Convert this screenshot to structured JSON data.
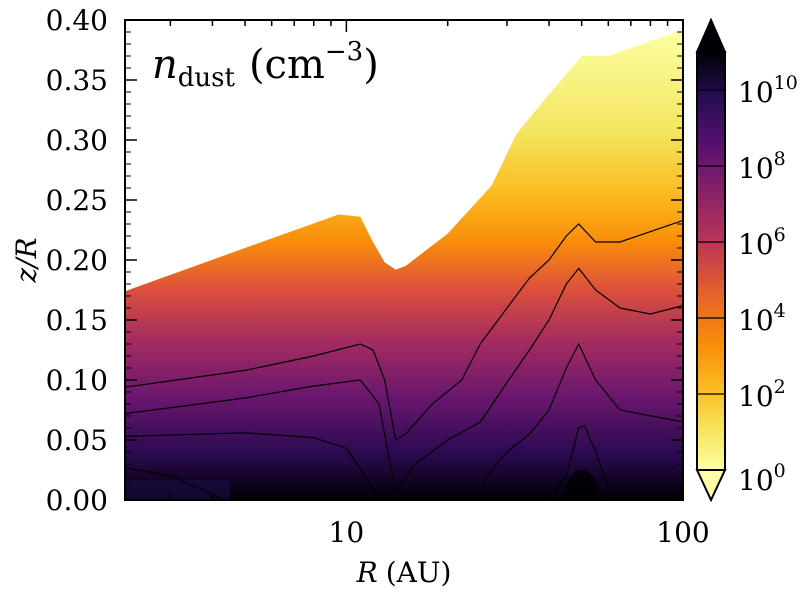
{
  "chart_data": {
    "type": "heatmap",
    "title": "n_dust (cm^-3)",
    "title_parts": {
      "symbol": "n",
      "subscript": "dust",
      "unit_open": "(cm",
      "unit_power": "−3",
      "unit_close": ")"
    },
    "xlabel": "R (AU)",
    "xlabel_parts": {
      "symbol": "R",
      "unit": "(AU)"
    },
    "ylabel": "z/R",
    "x_scale": "log",
    "xlim": [
      2.2,
      100
    ],
    "ylim": [
      0.0,
      0.4
    ],
    "x_ticks": [
      {
        "value": 10,
        "label": "10"
      },
      {
        "value": 100,
        "label": "100"
      }
    ],
    "y_ticks": [
      {
        "value": 0.0,
        "label": "0.00"
      },
      {
        "value": 0.05,
        "label": "0.05"
      },
      {
        "value": 0.1,
        "label": "0.10"
      },
      {
        "value": 0.15,
        "label": "0.15"
      },
      {
        "value": 0.2,
        "label": "0.20"
      },
      {
        "value": 0.25,
        "label": "0.25"
      },
      {
        "value": 0.3,
        "label": "0.30"
      },
      {
        "value": 0.35,
        "label": "0.35"
      },
      {
        "value": 0.4,
        "label": "0.40"
      }
    ],
    "colorbar": {
      "scale": "log",
      "range_exponent": [
        0,
        11
      ],
      "colormap": "inferno_r",
      "extend": "both",
      "tick_exponents": [
        0,
        2,
        4,
        6,
        8,
        10
      ],
      "tick_base": "10",
      "label_position": "right"
    },
    "upper_boundary": [
      [
        2.2,
        0.174
      ],
      [
        5,
        0.21
      ],
      [
        9.5,
        0.238
      ],
      [
        11,
        0.236
      ],
      [
        12,
        0.215
      ],
      [
        13,
        0.198
      ],
      [
        14,
        0.192
      ],
      [
        15,
        0.195
      ],
      [
        20,
        0.222
      ],
      [
        27,
        0.262
      ],
      [
        32,
        0.305
      ],
      [
        40,
        0.338
      ],
      [
        50,
        0.37
      ],
      [
        60,
        0.37
      ],
      [
        100,
        0.392
      ]
    ],
    "contours": [
      {
        "level_exponent": 8,
        "points": [
          [
            2.2,
            0.027
          ],
          [
            3,
            0.02
          ],
          [
            4,
            0.005
          ],
          [
            4.3,
            0.0
          ]
        ]
      },
      {
        "level_exponent": 8,
        "points": [
          [
            40,
            0.0
          ],
          [
            45,
            0.02
          ],
          [
            49,
            0.06
          ],
          [
            51,
            0.062
          ],
          [
            55,
            0.04
          ],
          [
            62,
            0.0
          ]
        ]
      },
      {
        "level_exponent": 6,
        "points": [
          [
            2.2,
            0.053
          ],
          [
            5,
            0.056
          ],
          [
            8,
            0.052
          ],
          [
            10,
            0.043
          ],
          [
            12,
            0.01
          ],
          [
            12.6,
            0.0
          ]
        ]
      },
      {
        "level_exponent": 6,
        "points": [
          [
            25,
            0.0
          ],
          [
            26,
            0.02
          ],
          [
            30,
            0.04
          ],
          [
            35,
            0.055
          ],
          [
            40,
            0.075
          ],
          [
            45,
            0.11
          ],
          [
            49,
            0.13
          ],
          [
            55,
            0.1
          ],
          [
            65,
            0.075
          ],
          [
            100,
            0.065
          ]
        ]
      },
      {
        "level_exponent": 4,
        "points": [
          [
            2.2,
            0.072
          ],
          [
            5,
            0.085
          ],
          [
            8,
            0.095
          ],
          [
            11,
            0.1
          ],
          [
            12.5,
            0.08
          ],
          [
            13.5,
            0.03
          ],
          [
            14,
            0.006
          ],
          [
            16,
            0.03
          ],
          [
            20,
            0.05
          ],
          [
            25,
            0.065
          ],
          [
            30,
            0.098
          ],
          [
            35,
            0.125
          ],
          [
            40,
            0.15
          ],
          [
            45,
            0.18
          ],
          [
            49,
            0.193
          ],
          [
            55,
            0.175
          ],
          [
            65,
            0.16
          ],
          [
            80,
            0.155
          ],
          [
            100,
            0.162
          ]
        ]
      },
      {
        "level_exponent": 2,
        "points": [
          [
            2.2,
            0.094
          ],
          [
            5,
            0.108
          ],
          [
            8,
            0.12
          ],
          [
            11,
            0.13
          ],
          [
            12,
            0.125
          ],
          [
            13,
            0.1
          ],
          [
            14,
            0.05
          ],
          [
            15,
            0.055
          ],
          [
            18,
            0.08
          ],
          [
            22,
            0.1
          ],
          [
            25,
            0.13
          ],
          [
            30,
            0.16
          ],
          [
            35,
            0.185
          ],
          [
            40,
            0.2
          ],
          [
            45,
            0.22
          ],
          [
            49,
            0.23
          ],
          [
            55,
            0.215
          ],
          [
            65,
            0.215
          ],
          [
            100,
            0.233
          ]
        ]
      }
    ]
  }
}
